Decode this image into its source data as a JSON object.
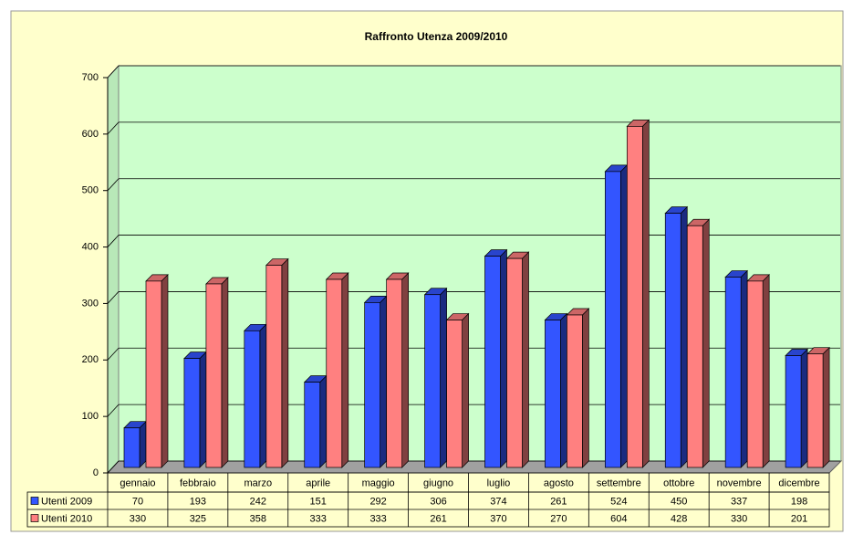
{
  "chart_data": {
    "type": "bar3d",
    "title": "Raffronto Utenza 2009/2010",
    "categories": [
      "gennaio",
      "febbraio",
      "marzo",
      "aprile",
      "maggio",
      "giugno",
      "luglio",
      "agosto",
      "settembre",
      "ottobre",
      "novembre",
      "dicembre"
    ],
    "series": [
      {
        "name": "Utenti 2009",
        "color": "#3355ff",
        "values": [
          70,
          193,
          242,
          151,
          292,
          306,
          374,
          261,
          524,
          450,
          337,
          198
        ]
      },
      {
        "name": "Utenti 2010",
        "color": "#ff8080",
        "values": [
          330,
          325,
          358,
          333,
          333,
          261,
          370,
          270,
          604,
          428,
          330,
          201
        ]
      }
    ],
    "ylim": [
      0,
      700
    ],
    "yticks": [
      0,
      100,
      200,
      300,
      400,
      500,
      600,
      700
    ],
    "grid": true
  }
}
